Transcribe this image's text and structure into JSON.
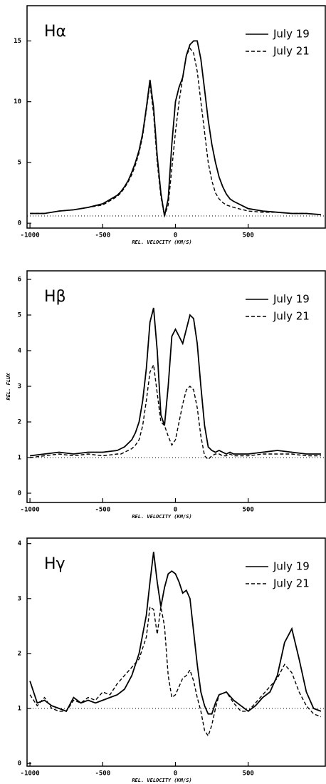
{
  "chart_data": [
    {
      "type": "line",
      "title": "Hα",
      "x_label": "REL. VELOCITY (KM/S)",
      "x": [
        -1000,
        -900,
        -800,
        -700,
        -600,
        -500,
        -400,
        -375,
        -350,
        -325,
        -300,
        -275,
        -250,
        -225,
        -200,
        -175,
        -150,
        -125,
        -100,
        -75,
        -50,
        -25,
        0,
        25,
        50,
        75,
        100,
        125,
        150,
        175,
        200,
        225,
        250,
        275,
        300,
        325,
        350,
        375,
        400,
        500,
        600,
        700,
        800,
        900,
        1000
      ],
      "series": [
        {
          "name": "July 19",
          "color": "#000000",
          "dash": "solid",
          "values": [
            0.8,
            0.8,
            1.0,
            1.1,
            1.3,
            1.6,
            2.3,
            2.6,
            3.0,
            3.5,
            4.2,
            5.0,
            6.0,
            7.4,
            9.5,
            11.8,
            9.5,
            5.5,
            2.5,
            0.6,
            2.0,
            6.5,
            10.0,
            11.2,
            12.0,
            13.8,
            14.7,
            15.0,
            15.0,
            13.5,
            11.0,
            8.5,
            6.5,
            5.0,
            3.8,
            3.0,
            2.4,
            2.0,
            1.8,
            1.2,
            1.0,
            0.9,
            0.8,
            0.8,
            0.7
          ]
        },
        {
          "name": "July 21",
          "color": "#000000",
          "dash": "dashed",
          "values": [
            0.8,
            0.8,
            1.0,
            1.1,
            1.3,
            1.5,
            2.2,
            2.5,
            2.9,
            3.4,
            4.0,
            4.8,
            5.8,
            7.2,
            9.3,
            11.5,
            9.0,
            5.0,
            2.2,
            0.6,
            1.5,
            4.5,
            7.5,
            10.0,
            12.0,
            13.8,
            14.4,
            14.0,
            12.5,
            10.0,
            7.5,
            5.0,
            3.5,
            2.5,
            2.0,
            1.7,
            1.5,
            1.4,
            1.3,
            1.0,
            0.9,
            0.9,
            0.8,
            0.8,
            0.7
          ]
        }
      ],
      "reference_line": 0.6,
      "xlim": [
        -1020,
        1030
      ],
      "xticks": [
        -1000,
        -500,
        0,
        500
      ],
      "ylim": [
        -0.4,
        17.9
      ],
      "yticks": [
        0,
        5,
        10,
        15
      ]
    },
    {
      "type": "line",
      "title": "Hβ",
      "x_label": "REL. VELOCITY (KM/S)",
      "y_label": "REL. FLUX",
      "x": [
        -1000,
        -900,
        -800,
        -700,
        -600,
        -500,
        -400,
        -375,
        -350,
        -325,
        -300,
        -275,
        -250,
        -225,
        -200,
        -175,
        -150,
        -125,
        -100,
        -75,
        -50,
        -25,
        0,
        25,
        50,
        75,
        100,
        125,
        150,
        175,
        200,
        225,
        250,
        275,
        300,
        325,
        350,
        375,
        400,
        500,
        600,
        700,
        800,
        900,
        1000
      ],
      "series": [
        {
          "name": "July 19",
          "color": "#000000",
          "dash": "solid",
          "values": [
            1.05,
            1.1,
            1.15,
            1.1,
            1.15,
            1.15,
            1.2,
            1.25,
            1.3,
            1.4,
            1.5,
            1.7,
            2.0,
            2.6,
            3.5,
            4.8,
            5.2,
            4.0,
            2.2,
            1.9,
            3.0,
            4.4,
            4.6,
            4.4,
            4.2,
            4.6,
            5.0,
            4.9,
            4.2,
            3.0,
            1.9,
            1.3,
            1.2,
            1.15,
            1.2,
            1.15,
            1.1,
            1.15,
            1.1,
            1.1,
            1.15,
            1.2,
            1.15,
            1.1,
            1.1
          ]
        },
        {
          "name": "July 21",
          "color": "#000000",
          "dash": "dashed",
          "values": [
            1.0,
            1.05,
            1.1,
            1.05,
            1.1,
            1.05,
            1.1,
            1.1,
            1.15,
            1.2,
            1.25,
            1.35,
            1.5,
            1.9,
            2.6,
            3.4,
            3.6,
            2.8,
            2.0,
            1.9,
            1.6,
            1.35,
            1.5,
            2.0,
            2.5,
            2.9,
            3.0,
            2.9,
            2.4,
            1.6,
            1.05,
            0.95,
            1.05,
            1.1,
            1.1,
            1.05,
            1.05,
            1.1,
            1.05,
            1.05,
            1.1,
            1.1,
            1.1,
            1.05,
            1.05
          ]
        }
      ],
      "reference_line": 1,
      "xlim": [
        -1020,
        1030
      ],
      "xticks": [
        -1000,
        -500,
        0,
        500
      ],
      "ylim": [
        -0.26,
        6.24
      ],
      "yticks": [
        0,
        1,
        2,
        3,
        4,
        5,
        6
      ]
    },
    {
      "type": "line",
      "title": "Hγ",
      "x_label": "REL. VELOCITY (KM/S)",
      "x": [
        -1000,
        -950,
        -900,
        -850,
        -800,
        -750,
        -700,
        -650,
        -600,
        -550,
        -500,
        -450,
        -400,
        -350,
        -300,
        -250,
        -200,
        -175,
        -150,
        -125,
        -100,
        -75,
        -50,
        -25,
        0,
        25,
        50,
        75,
        100,
        125,
        150,
        175,
        200,
        225,
        250,
        275,
        300,
        350,
        400,
        450,
        500,
        550,
        600,
        650,
        700,
        750,
        800,
        850,
        900,
        950,
        1000
      ],
      "series": [
        {
          "name": "July 19",
          "color": "#000000",
          "dash": "solid",
          "values": [
            1.5,
            1.1,
            1.15,
            1.05,
            1.0,
            0.95,
            1.2,
            1.1,
            1.15,
            1.1,
            1.15,
            1.2,
            1.25,
            1.35,
            1.6,
            2.0,
            2.7,
            3.3,
            3.85,
            3.3,
            2.85,
            3.2,
            3.45,
            3.5,
            3.45,
            3.3,
            3.1,
            3.15,
            3.0,
            2.4,
            1.8,
            1.3,
            1.05,
            0.9,
            0.9,
            1.1,
            1.25,
            1.3,
            1.15,
            1.05,
            0.95,
            1.05,
            1.2,
            1.3,
            1.6,
            2.2,
            2.45,
            1.9,
            1.3,
            1.0,
            0.95
          ]
        },
        {
          "name": "July 21",
          "color": "#000000",
          "dash": "dashed",
          "values": [
            1.25,
            1.05,
            1.2,
            1.0,
            0.95,
            0.95,
            1.15,
            1.1,
            1.2,
            1.15,
            1.3,
            1.25,
            1.45,
            1.6,
            1.75,
            1.9,
            2.3,
            2.85,
            2.8,
            2.35,
            2.85,
            2.5,
            1.6,
            1.2,
            1.25,
            1.4,
            1.55,
            1.6,
            1.7,
            1.5,
            1.2,
            0.95,
            0.6,
            0.5,
            0.7,
            1.0,
            1.25,
            1.3,
            1.1,
            0.95,
            0.95,
            1.1,
            1.25,
            1.4,
            1.55,
            1.8,
            1.65,
            1.3,
            1.05,
            0.9,
            0.85
          ]
        }
      ],
      "reference_line": 1,
      "xlim": [
        -1020,
        1030
      ],
      "xticks": [
        -1000,
        -500,
        0,
        500
      ],
      "ylim": [
        -0.05,
        4.1
      ],
      "yticks": [
        0,
        1,
        2,
        3,
        4
      ]
    }
  ]
}
